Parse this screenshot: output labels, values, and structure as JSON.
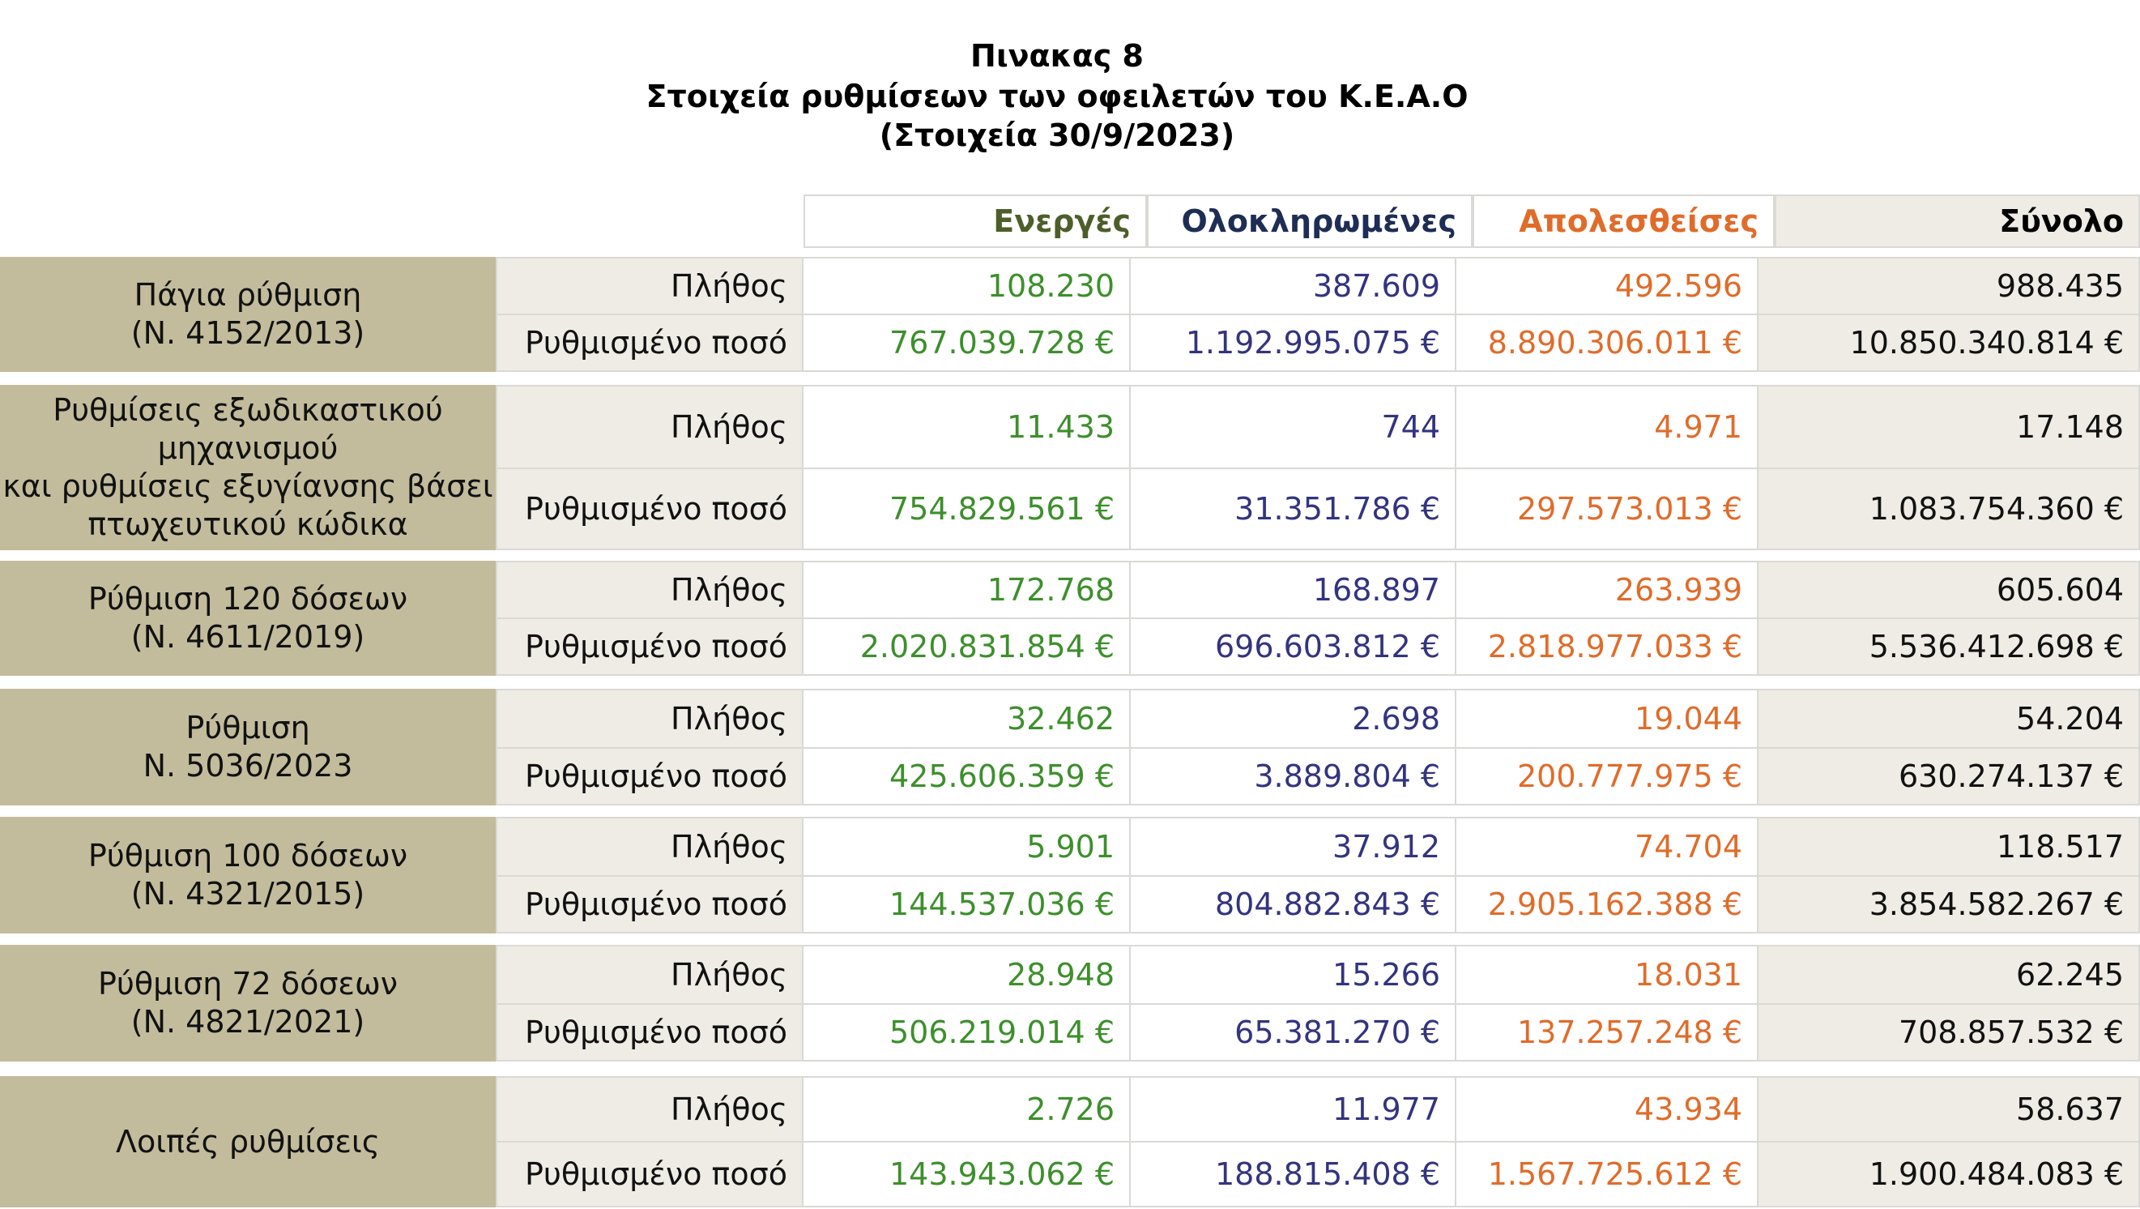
{
  "title": {
    "line1": "Πινακας 8",
    "line2": "Στοιχεία ρυθμίσεων των οφειλετών του Κ.Ε.Α.Ο",
    "line3": "(Στοιχεία 30/9/2023)"
  },
  "columns": {
    "active": "Ενεργές",
    "completed": "Ολοκληρωμένες",
    "lost": "Απολεσθείσες",
    "total": "Σύνολο"
  },
  "colors": {
    "active": "#3d8f2c",
    "completed": "#33347f",
    "lost": "#e06c2a",
    "label_bg": "#c2bc9c",
    "row_label_bg": "#eeece4"
  },
  "row_labels": {
    "count": "Πλήθος",
    "amount": "Ρυθμισμένο ποσό"
  },
  "groups": [
    {
      "label": [
        "Πάγια ρύθμιση",
        "(Ν. 4152/2013)"
      ],
      "count": [
        "108.230",
        "387.609",
        "492.596",
        "988.435"
      ],
      "amount": [
        "767.039.728 €",
        "1.192.995.075 €",
        "8.890.306.011 €",
        "10.850.340.814 €"
      ]
    },
    {
      "label": [
        "Ρυθμίσεις εξωδικαστικού",
        "μηχανισμού",
        "και ρυθμίσεις εξυγίανσης βάσει",
        "πτωχευτικού κώδικα"
      ],
      "count": [
        "11.433",
        "744",
        "4.971",
        "17.148"
      ],
      "amount": [
        "754.829.561 €",
        "31.351.786 €",
        "297.573.013 €",
        "1.083.754.360 €"
      ]
    },
    {
      "label": [
        "Ρύθμιση 120 δόσεων",
        "(Ν. 4611/2019)"
      ],
      "count": [
        "172.768",
        "168.897",
        "263.939",
        "605.604"
      ],
      "amount": [
        "2.020.831.854 €",
        "696.603.812 €",
        "2.818.977.033 €",
        "5.536.412.698 €"
      ]
    },
    {
      "label": [
        "Ρύθμιση",
        "Ν. 5036/2023"
      ],
      "count": [
        "32.462",
        "2.698",
        "19.044",
        "54.204"
      ],
      "amount": [
        "425.606.359 €",
        "3.889.804 €",
        "200.777.975 €",
        "630.274.137 €"
      ]
    },
    {
      "label": [
        "Ρύθμιση 100 δόσεων",
        "(Ν. 4321/2015)"
      ],
      "count": [
        "5.901",
        "37.912",
        "74.704",
        "118.517"
      ],
      "amount": [
        "144.537.036 €",
        "804.882.843 €",
        "2.905.162.388 €",
        "3.854.582.267 €"
      ]
    },
    {
      "label": [
        "Ρύθμιση 72 δόσεων",
        "(Ν. 4821/2021)"
      ],
      "count": [
        "28.948",
        "15.266",
        "18.031",
        "62.245"
      ],
      "amount": [
        "506.219.014 €",
        "65.381.270 €",
        "137.257.248 €",
        "708.857.532 €"
      ]
    },
    {
      "label": [
        "Λοιπές ρυθμίσεις"
      ],
      "count": [
        "2.726",
        "11.977",
        "43.934",
        "58.637"
      ],
      "amount": [
        "143.943.062 €",
        "188.815.408 €",
        "1.567.725.612 €",
        "1.900.484.083 €"
      ]
    }
  ]
}
